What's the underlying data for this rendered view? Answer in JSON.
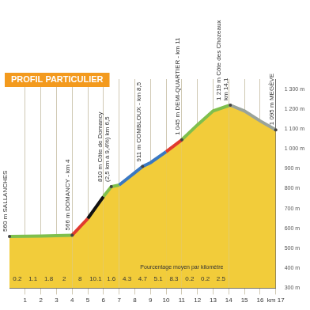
{
  "chart_data": {
    "type": "area",
    "title": "PROFIL PARTICULIER",
    "x": [
      0,
      1,
      2,
      3,
      4,
      5,
      6,
      6.5,
      7,
      8,
      8.5,
      9,
      10,
      11,
      12,
      13,
      14,
      14.1,
      15,
      16,
      17
    ],
    "values": [
      560,
      561,
      562,
      564,
      566,
      650,
      760,
      810,
      818,
      880,
      911,
      930,
      985,
      1045,
      1120,
      1190,
      1217,
      1219,
      1190,
      1140,
      1095
    ],
    "color": "#f2cc3a",
    "line_color": "#9aa39a",
    "xlim": [
      0,
      17
    ],
    "xticks": [
      1,
      2,
      3,
      4,
      5,
      6,
      7,
      8,
      9,
      10,
      11,
      12,
      13,
      14,
      15,
      16,
      {
        "value": 17,
        "label": "km 17"
      }
    ],
    "ylim": [
      300,
      1350
    ],
    "yticks": [
      {
        "value": 300,
        "label": "300 m"
      },
      {
        "value": 400,
        "label": "400 m"
      },
      {
        "value": 500,
        "label": "500 m"
      },
      {
        "value": 600,
        "label": "600 m"
      },
      {
        "value": 700,
        "label": "700 m"
      },
      {
        "value": 800,
        "label": "800 m"
      },
      {
        "value": 900,
        "label": "900 m"
      },
      {
        "value": 1000,
        "label": "1 000 m"
      },
      {
        "value": 1100,
        "label": "1 100 m"
      },
      {
        "value": 1200,
        "label": "1 200 m"
      },
      {
        "value": 1300,
        "label": "1 300 m"
      }
    ],
    "grid": true,
    "gradients": {
      "title": "Pourcentage moyen par kilomètre",
      "x": [
        0.5,
        1.5,
        2.5,
        3.5,
        4.5,
        5.5,
        6.5,
        7.5,
        8.5,
        9.5,
        10.5,
        11.5,
        12.5,
        13.5
      ],
      "values": [
        0.2,
        1.1,
        1.8,
        2,
        8,
        10.1,
        1.6,
        4.3,
        4.7,
        5.1,
        8.3,
        0.2,
        0.2,
        2.5
      ],
      "colors": [
        "#7fbf4d",
        "#7fbf4d",
        "#7fbf4d",
        "#7fbf4d",
        "#e03a2f",
        "#111111",
        "#7fbf4d",
        "#3a78c2",
        "#3a78c2",
        "#3a78c2",
        "#e03a2f",
        "#7fbf4d",
        "#7fbf4d",
        "#7fbf4d"
      ]
    },
    "annotations": [
      {
        "x": 0,
        "y": 560,
        "text": [
          "560 m SALLANCHES"
        ]
      },
      {
        "x": 4,
        "y": 566,
        "text": [
          "566 m DOMANCY - km 4"
        ]
      },
      {
        "x": 6.5,
        "y": 810,
        "text": [
          "810 m Côte de Domancy",
          "(2,5 km à 9,4%) km 6,5"
        ]
      },
      {
        "x": 8.5,
        "y": 911,
        "text": [
          "911 m COMBLOUX - km 8,5"
        ]
      },
      {
        "x": 11,
        "y": 1045,
        "text": [
          "1 045 m DEMI-QUARTIER - km 11"
        ]
      },
      {
        "x": 14.1,
        "y": 1219,
        "text": [
          "1 219 m Côte des Chozeaux",
          "km 14,1"
        ]
      },
      {
        "x": 17,
        "y": 1095,
        "text": [
          "1 095 m MEGÈVE"
        ]
      }
    ]
  }
}
